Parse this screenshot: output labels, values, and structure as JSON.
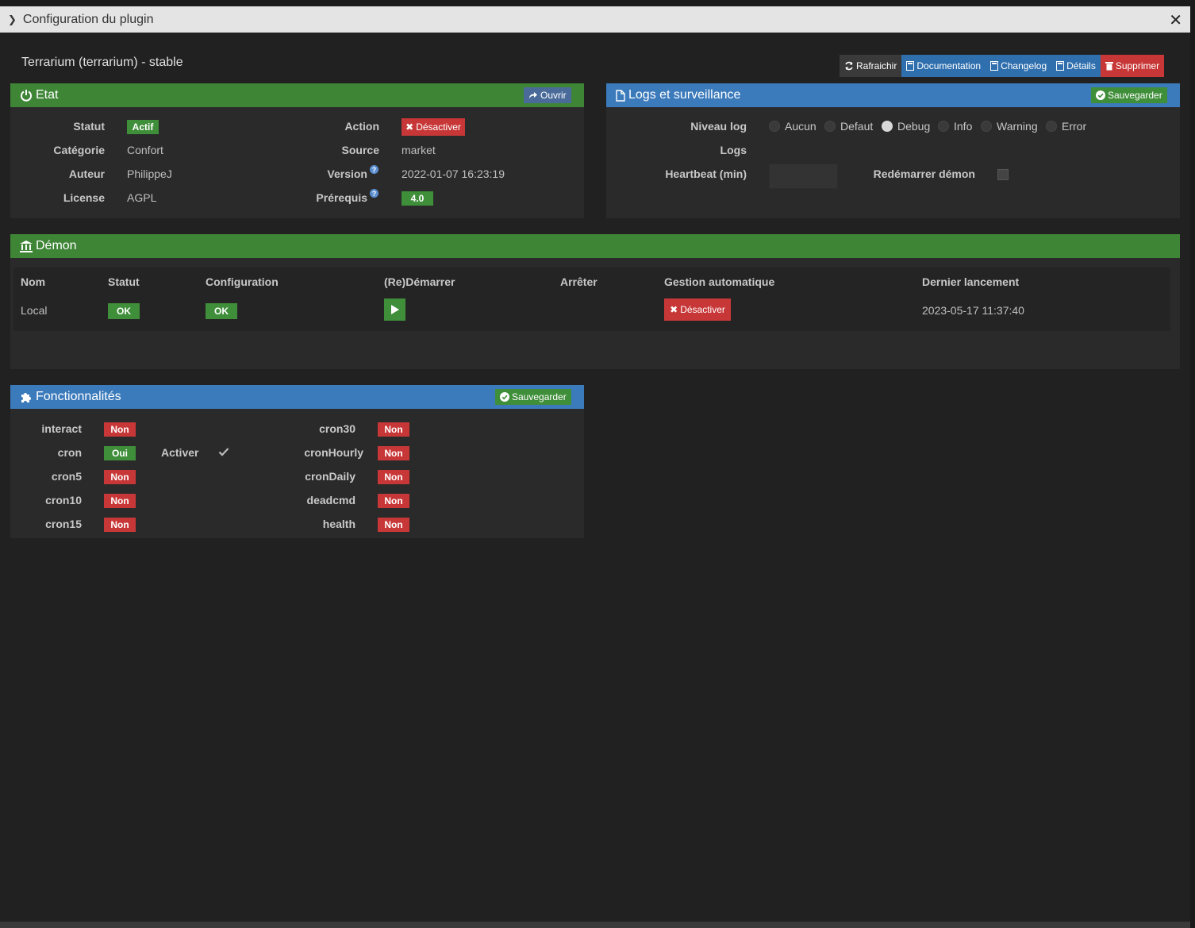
{
  "window": {
    "title": "Configuration du plugin"
  },
  "plugin": {
    "title": "Terrarium (terrarium) - stable"
  },
  "toolbar": {
    "refresh": "Rafraichir",
    "documentation": "Documentation",
    "changelog": "Changelog",
    "details": "Détails",
    "delete": "Supprimer"
  },
  "etat": {
    "title": "Etat",
    "open_button": "Ouvrir",
    "statut_label": "Statut",
    "statut_value": "Actif",
    "categorie_label": "Catégorie",
    "categorie_value": "Confort",
    "auteur_label": "Auteur",
    "auteur_value": "PhilippeJ",
    "license_label": "License",
    "license_value": "AGPL",
    "action_label": "Action",
    "action_button": "Désactiver",
    "source_label": "Source",
    "source_value": "market",
    "version_label": "Version",
    "version_value": "2022-01-07 16:23:19",
    "prerequis_label": "Prérequis",
    "prerequis_value": "4.0",
    "help_glyph": "?"
  },
  "logs": {
    "title": "Logs et surveillance",
    "save_button": "Sauvegarder",
    "level_label": "Niveau log",
    "levels": [
      "Aucun",
      "Defaut",
      "Debug",
      "Info",
      "Warning",
      "Error"
    ],
    "selected_level": "Debug",
    "logs_label": "Logs",
    "heartbeat_label": "Heartbeat (min)",
    "heartbeat_value": "",
    "restart_label": "Redémarrer démon",
    "restart_checked": false
  },
  "demon": {
    "title": "Démon",
    "columns": [
      "Nom",
      "Statut",
      "Configuration",
      "(Re)Démarrer",
      "Arrêter",
      "Gestion automatique",
      "Dernier lancement"
    ],
    "row": {
      "nom": "Local",
      "statut": "OK",
      "configuration": "OK",
      "auto_button": "Désactiver",
      "last_launch": "2023-05-17 11:37:40"
    }
  },
  "features": {
    "title": "Fonctionnalités",
    "save_button": "Sauvegarder",
    "activer_label": "Activer",
    "left": [
      {
        "name": "interact",
        "value": "Non"
      },
      {
        "name": "cron",
        "value": "Oui"
      },
      {
        "name": "cron5",
        "value": "Non"
      },
      {
        "name": "cron10",
        "value": "Non"
      },
      {
        "name": "cron15",
        "value": "Non"
      }
    ],
    "right": [
      {
        "name": "cron30",
        "value": "Non"
      },
      {
        "name": "cronHourly",
        "value": "Non"
      },
      {
        "name": "cronDaily",
        "value": "Non"
      },
      {
        "name": "deadcmd",
        "value": "Non"
      },
      {
        "name": "health",
        "value": "Non"
      }
    ]
  },
  "colors": {
    "green": "#3e8536",
    "blue": "#3b7abb",
    "red": "#c83737",
    "background": "#212121"
  }
}
